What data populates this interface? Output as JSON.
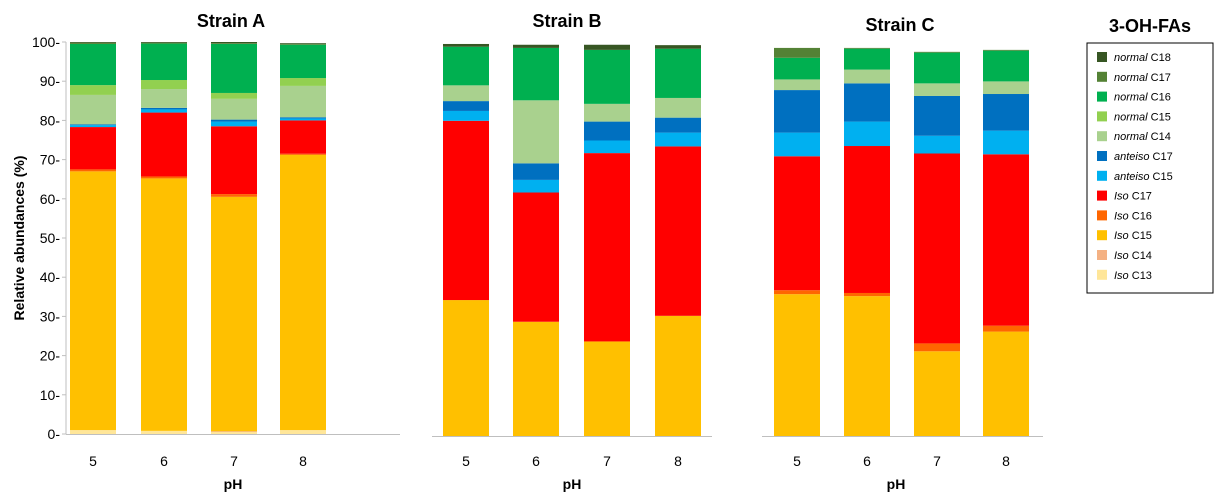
{
  "ylabel": "Relative abundances (%)",
  "xlabel": "pH",
  "legend": {
    "title": "3-OH-FAs",
    "entries": [
      {
        "prefix": "normal",
        "label": "C18",
        "color": "#375623"
      },
      {
        "prefix": "normal",
        "label": "C17",
        "color": "#548235"
      },
      {
        "prefix": "normal",
        "label": "C16",
        "color": "#00B050"
      },
      {
        "prefix": "normal",
        "label": "C15",
        "color": "#92D050"
      },
      {
        "prefix": "normal",
        "label": "C14",
        "color": "#A9D18E"
      },
      {
        "prefix": "anteiso",
        "label": "C17",
        "color": "#0070C0"
      },
      {
        "prefix": "anteiso",
        "label": "C15",
        "color": "#00B0F0"
      },
      {
        "prefix": "Iso",
        "label": "C17",
        "color": "#FF0000"
      },
      {
        "prefix": "Iso",
        "label": "C16",
        "color": "#FF6600"
      },
      {
        "prefix": "Iso",
        "label": "C15",
        "color": "#FFC000"
      },
      {
        "prefix": "Iso",
        "label": "C14",
        "color": "#F4B183"
      },
      {
        "prefix": "Iso",
        "label": "C13",
        "color": "#FFE699"
      }
    ]
  },
  "chart_data": [
    {
      "type": "bar",
      "stacked": true,
      "title": "Strain A",
      "xlabel": "pH",
      "ylabel": "Relative abundances (%)",
      "ylim": [
        0,
        100
      ],
      "yticks": [
        "0",
        "10",
        "20",
        "30",
        "40",
        "50",
        "60",
        "70",
        "80",
        "90",
        "100"
      ],
      "categories": [
        "5",
        "6",
        "7",
        "8"
      ],
      "series": [
        {
          "name": "Iso C13",
          "values": [
            1,
            0.8,
            0.5,
            1
          ]
        },
        {
          "name": "Iso C14",
          "values": [
            0,
            0,
            0.2,
            0
          ]
        },
        {
          "name": "Iso C15",
          "values": [
            66,
            64.4,
            59.8,
            70.2
          ]
        },
        {
          "name": "Iso C16",
          "values": [
            0.5,
            0.5,
            0.7,
            0.3
          ]
        },
        {
          "name": "Iso C17",
          "values": [
            10.8,
            16.3,
            17.3,
            8.5
          ]
        },
        {
          "name": "anteiso C15",
          "values": [
            0.5,
            0.8,
            1.2,
            0.5
          ]
        },
        {
          "name": "anteiso C17",
          "values": [
            0.2,
            0.4,
            0.5,
            0.3
          ]
        },
        {
          "name": "normal C14",
          "values": [
            7.5,
            4.8,
            5.3,
            8
          ]
        },
        {
          "name": "normal C15",
          "values": [
            2.5,
            2.3,
            1.5,
            2
          ]
        },
        {
          "name": "normal C16",
          "values": [
            10.5,
            9.3,
            12.5,
            8.5
          ]
        },
        {
          "name": "normal C17",
          "values": [
            0.3,
            0.2,
            0.2,
            0.2
          ]
        },
        {
          "name": "normal C18",
          "values": [
            0.2,
            0.2,
            0.3,
            0.2
          ]
        }
      ]
    },
    {
      "type": "bar",
      "stacked": true,
      "title": "Strain B",
      "xlabel": "pH",
      "ylim": [
        0,
        100
      ],
      "categories": [
        "5",
        "6",
        "7",
        "8"
      ],
      "series": [
        {
          "name": "Iso C13",
          "values": [
            0,
            0,
            0,
            0
          ]
        },
        {
          "name": "Iso C14",
          "values": [
            0,
            0,
            0,
            0
          ]
        },
        {
          "name": "Iso C15",
          "values": [
            34.5,
            29,
            24,
            30.5
          ]
        },
        {
          "name": "Iso C16",
          "values": [
            0,
            0,
            0,
            0
          ]
        },
        {
          "name": "Iso C17",
          "values": [
            45.5,
            32.8,
            47.8,
            43
          ]
        },
        {
          "name": "anteiso C15",
          "values": [
            2.5,
            3.2,
            3.2,
            3.5
          ]
        },
        {
          "name": "anteiso C17",
          "values": [
            2.5,
            4.2,
            4.8,
            3.8
          ]
        },
        {
          "name": "normal C14",
          "values": [
            4,
            16,
            4.5,
            5
          ]
        },
        {
          "name": "normal C15",
          "values": [
            0,
            0,
            0,
            0
          ]
        },
        {
          "name": "normal C16",
          "values": [
            9.8,
            13.3,
            13.7,
            12.5
          ]
        },
        {
          "name": "normal C17",
          "values": [
            0,
            0,
            0,
            0
          ]
        },
        {
          "name": "normal C18",
          "values": [
            0.7,
            0.8,
            1.3,
            0.9
          ]
        }
      ]
    },
    {
      "type": "bar",
      "stacked": true,
      "title": "Strain C",
      "xlabel": "pH",
      "ylim": [
        0,
        100
      ],
      "categories": [
        "5",
        "6",
        "7",
        "8"
      ],
      "series": [
        {
          "name": "Iso C13",
          "values": [
            0,
            0,
            0,
            0
          ]
        },
        {
          "name": "Iso C14",
          "values": [
            0,
            0,
            0,
            0
          ]
        },
        {
          "name": "Iso C15",
          "values": [
            36,
            35.5,
            21.5,
            26.5
          ]
        },
        {
          "name": "Iso C16",
          "values": [
            1,
            0.8,
            2,
            1.5
          ]
        },
        {
          "name": "Iso C17",
          "values": [
            34,
            37.3,
            48.2,
            43.5
          ]
        },
        {
          "name": "anteiso C15",
          "values": [
            6,
            6.2,
            4.5,
            6
          ]
        },
        {
          "name": "anteiso C17",
          "values": [
            10.8,
            9.7,
            10.1,
            9.3
          ]
        },
        {
          "name": "normal C14",
          "values": [
            2.7,
            3.5,
            3.2,
            3.2
          ]
        },
        {
          "name": "normal C15",
          "values": [
            0,
            0,
            0,
            0
          ]
        },
        {
          "name": "normal C16",
          "values": [
            5.5,
            5.3,
            7.8,
            7.8
          ]
        },
        {
          "name": "normal C17",
          "values": [
            2.5,
            0.2,
            0.2,
            0.2
          ]
        },
        {
          "name": "normal C18",
          "values": [
            0,
            0,
            0,
            0
          ]
        }
      ]
    }
  ]
}
